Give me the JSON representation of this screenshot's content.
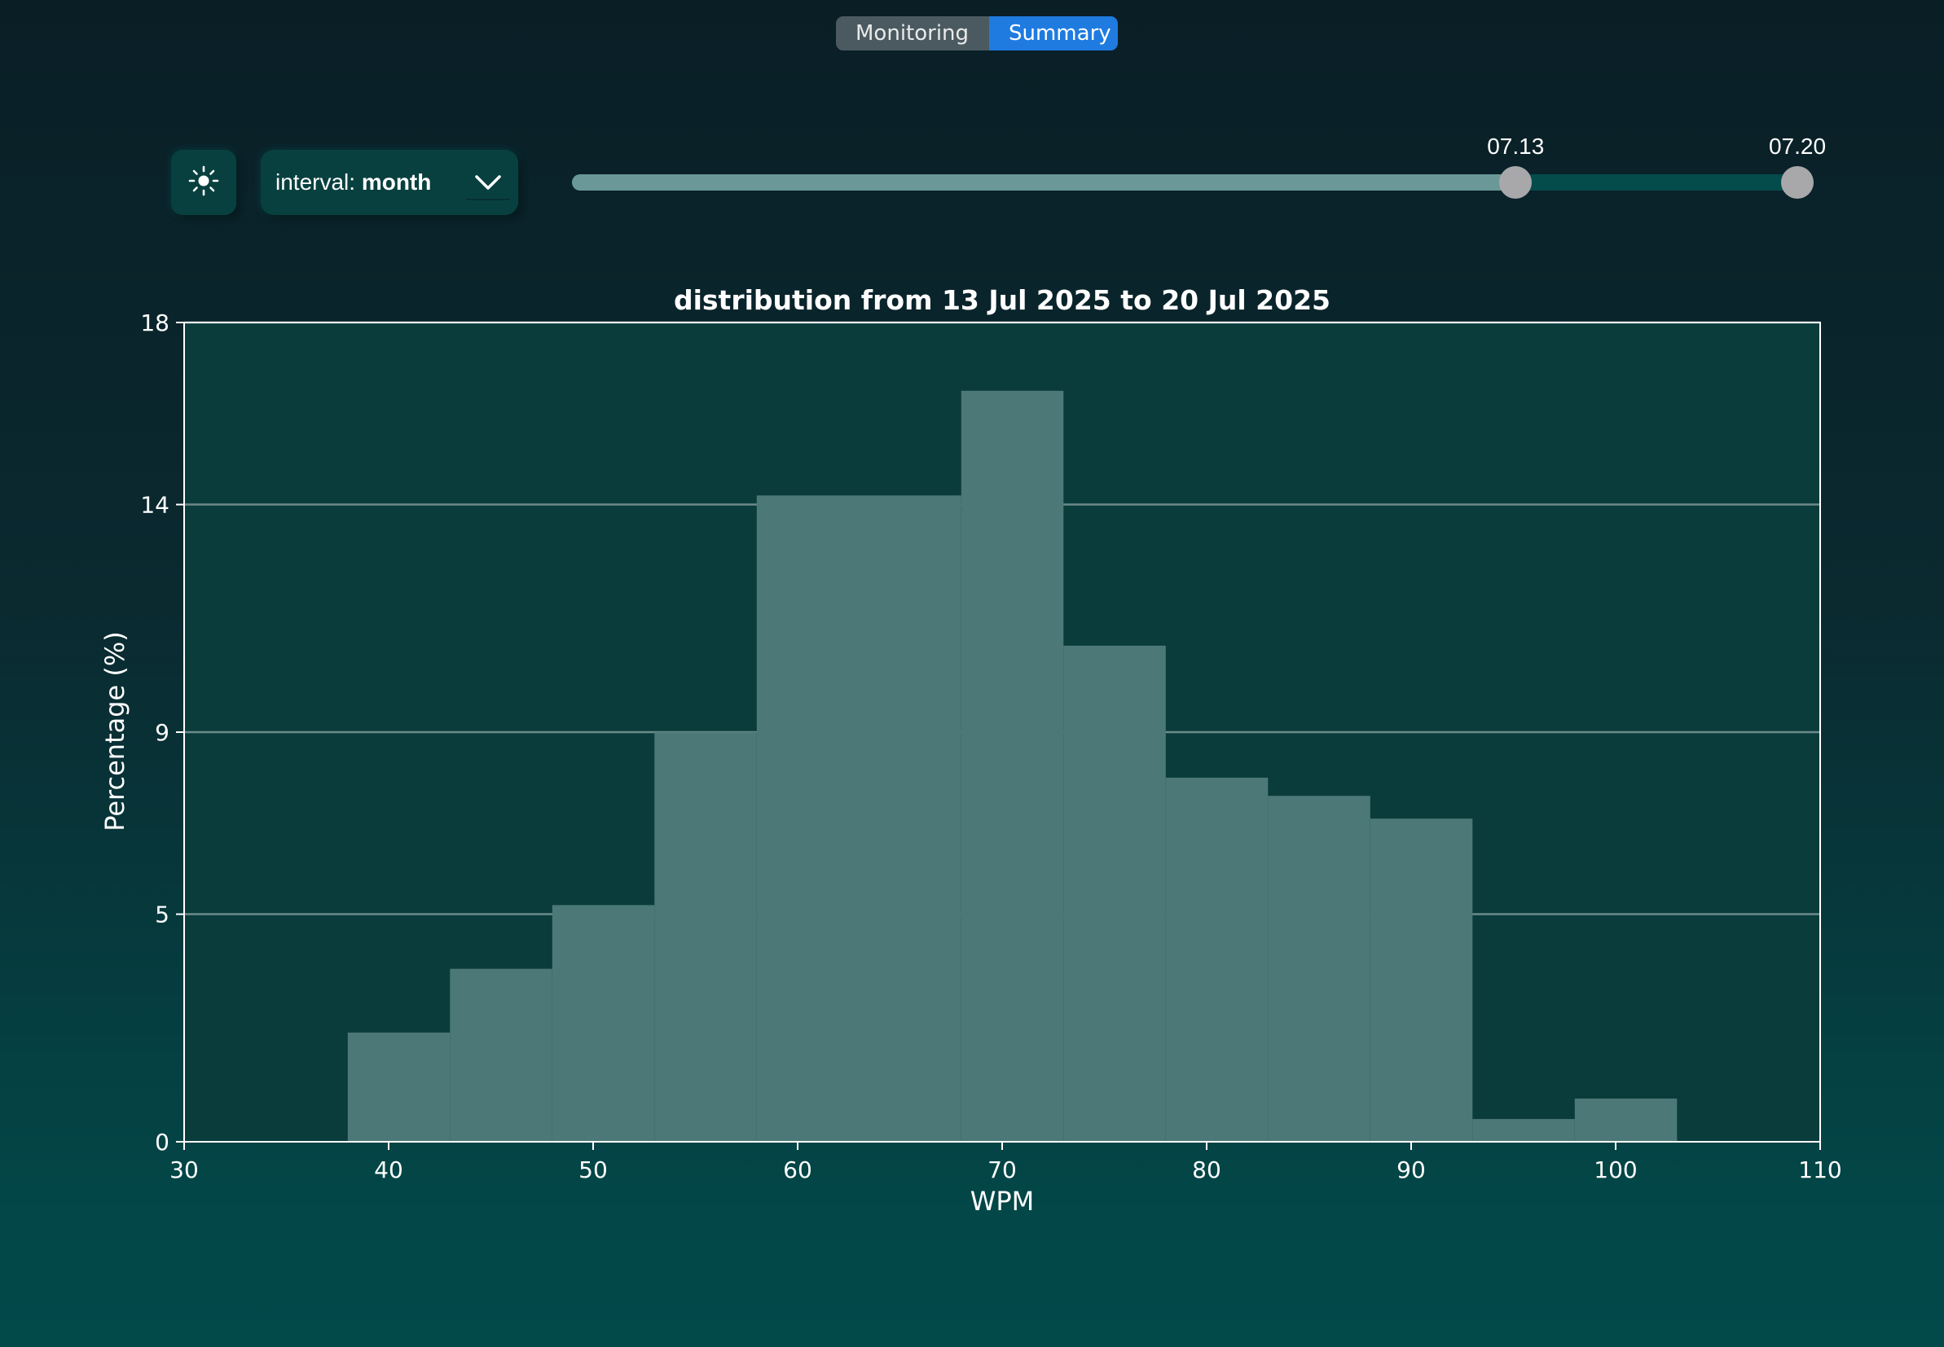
{
  "tabs": [
    {
      "label": "Monitoring",
      "active": false
    },
    {
      "label": "Summary",
      "active": true
    }
  ],
  "controls": {
    "theme_icon": "sun-icon",
    "interval_prefix": "interval: ",
    "interval_value": "month",
    "dropdown_icon": "chevron-down-icon"
  },
  "range_slider": {
    "start_label": "07.13",
    "end_label": "07.20",
    "start_fraction": 0.76,
    "end_fraction": 1.0
  },
  "colors": {
    "bar": "#4d7878",
    "plot_background": "#0a3c3c",
    "active_tab": "#1f7be0"
  },
  "chart_data": {
    "type": "bar",
    "title": "distribution from 13 Jul 2025 to 20 Jul 2025",
    "xlabel": "WPM",
    "ylabel": "Percentage (%)",
    "xlim": [
      30,
      110
    ],
    "ylim": [
      0,
      18
    ],
    "xticks": [
      30,
      40,
      50,
      60,
      70,
      80,
      90,
      100,
      110
    ],
    "yticks": [
      0,
      5,
      9,
      14,
      18
    ],
    "grid": "horizontal",
    "bins": [
      {
        "x0": 38,
        "x1": 43,
        "value": 2.4
      },
      {
        "x0": 43,
        "x1": 48,
        "value": 3.8
      },
      {
        "x0": 48,
        "x1": 53,
        "value": 5.2
      },
      {
        "x0": 53,
        "x1": 58,
        "value": 9.0
      },
      {
        "x0": 58,
        "x1": 68,
        "value": 14.2
      },
      {
        "x0": 68,
        "x1": 73,
        "value": 16.5
      },
      {
        "x0": 73,
        "x1": 78,
        "value": 10.9
      },
      {
        "x0": 78,
        "x1": 83,
        "value": 8.0
      },
      {
        "x0": 83,
        "x1": 88,
        "value": 7.6
      },
      {
        "x0": 88,
        "x1": 93,
        "value": 7.1
      },
      {
        "x0": 93,
        "x1": 98,
        "value": 0.5
      },
      {
        "x0": 98,
        "x1": 103,
        "value": 0.95
      }
    ]
  }
}
